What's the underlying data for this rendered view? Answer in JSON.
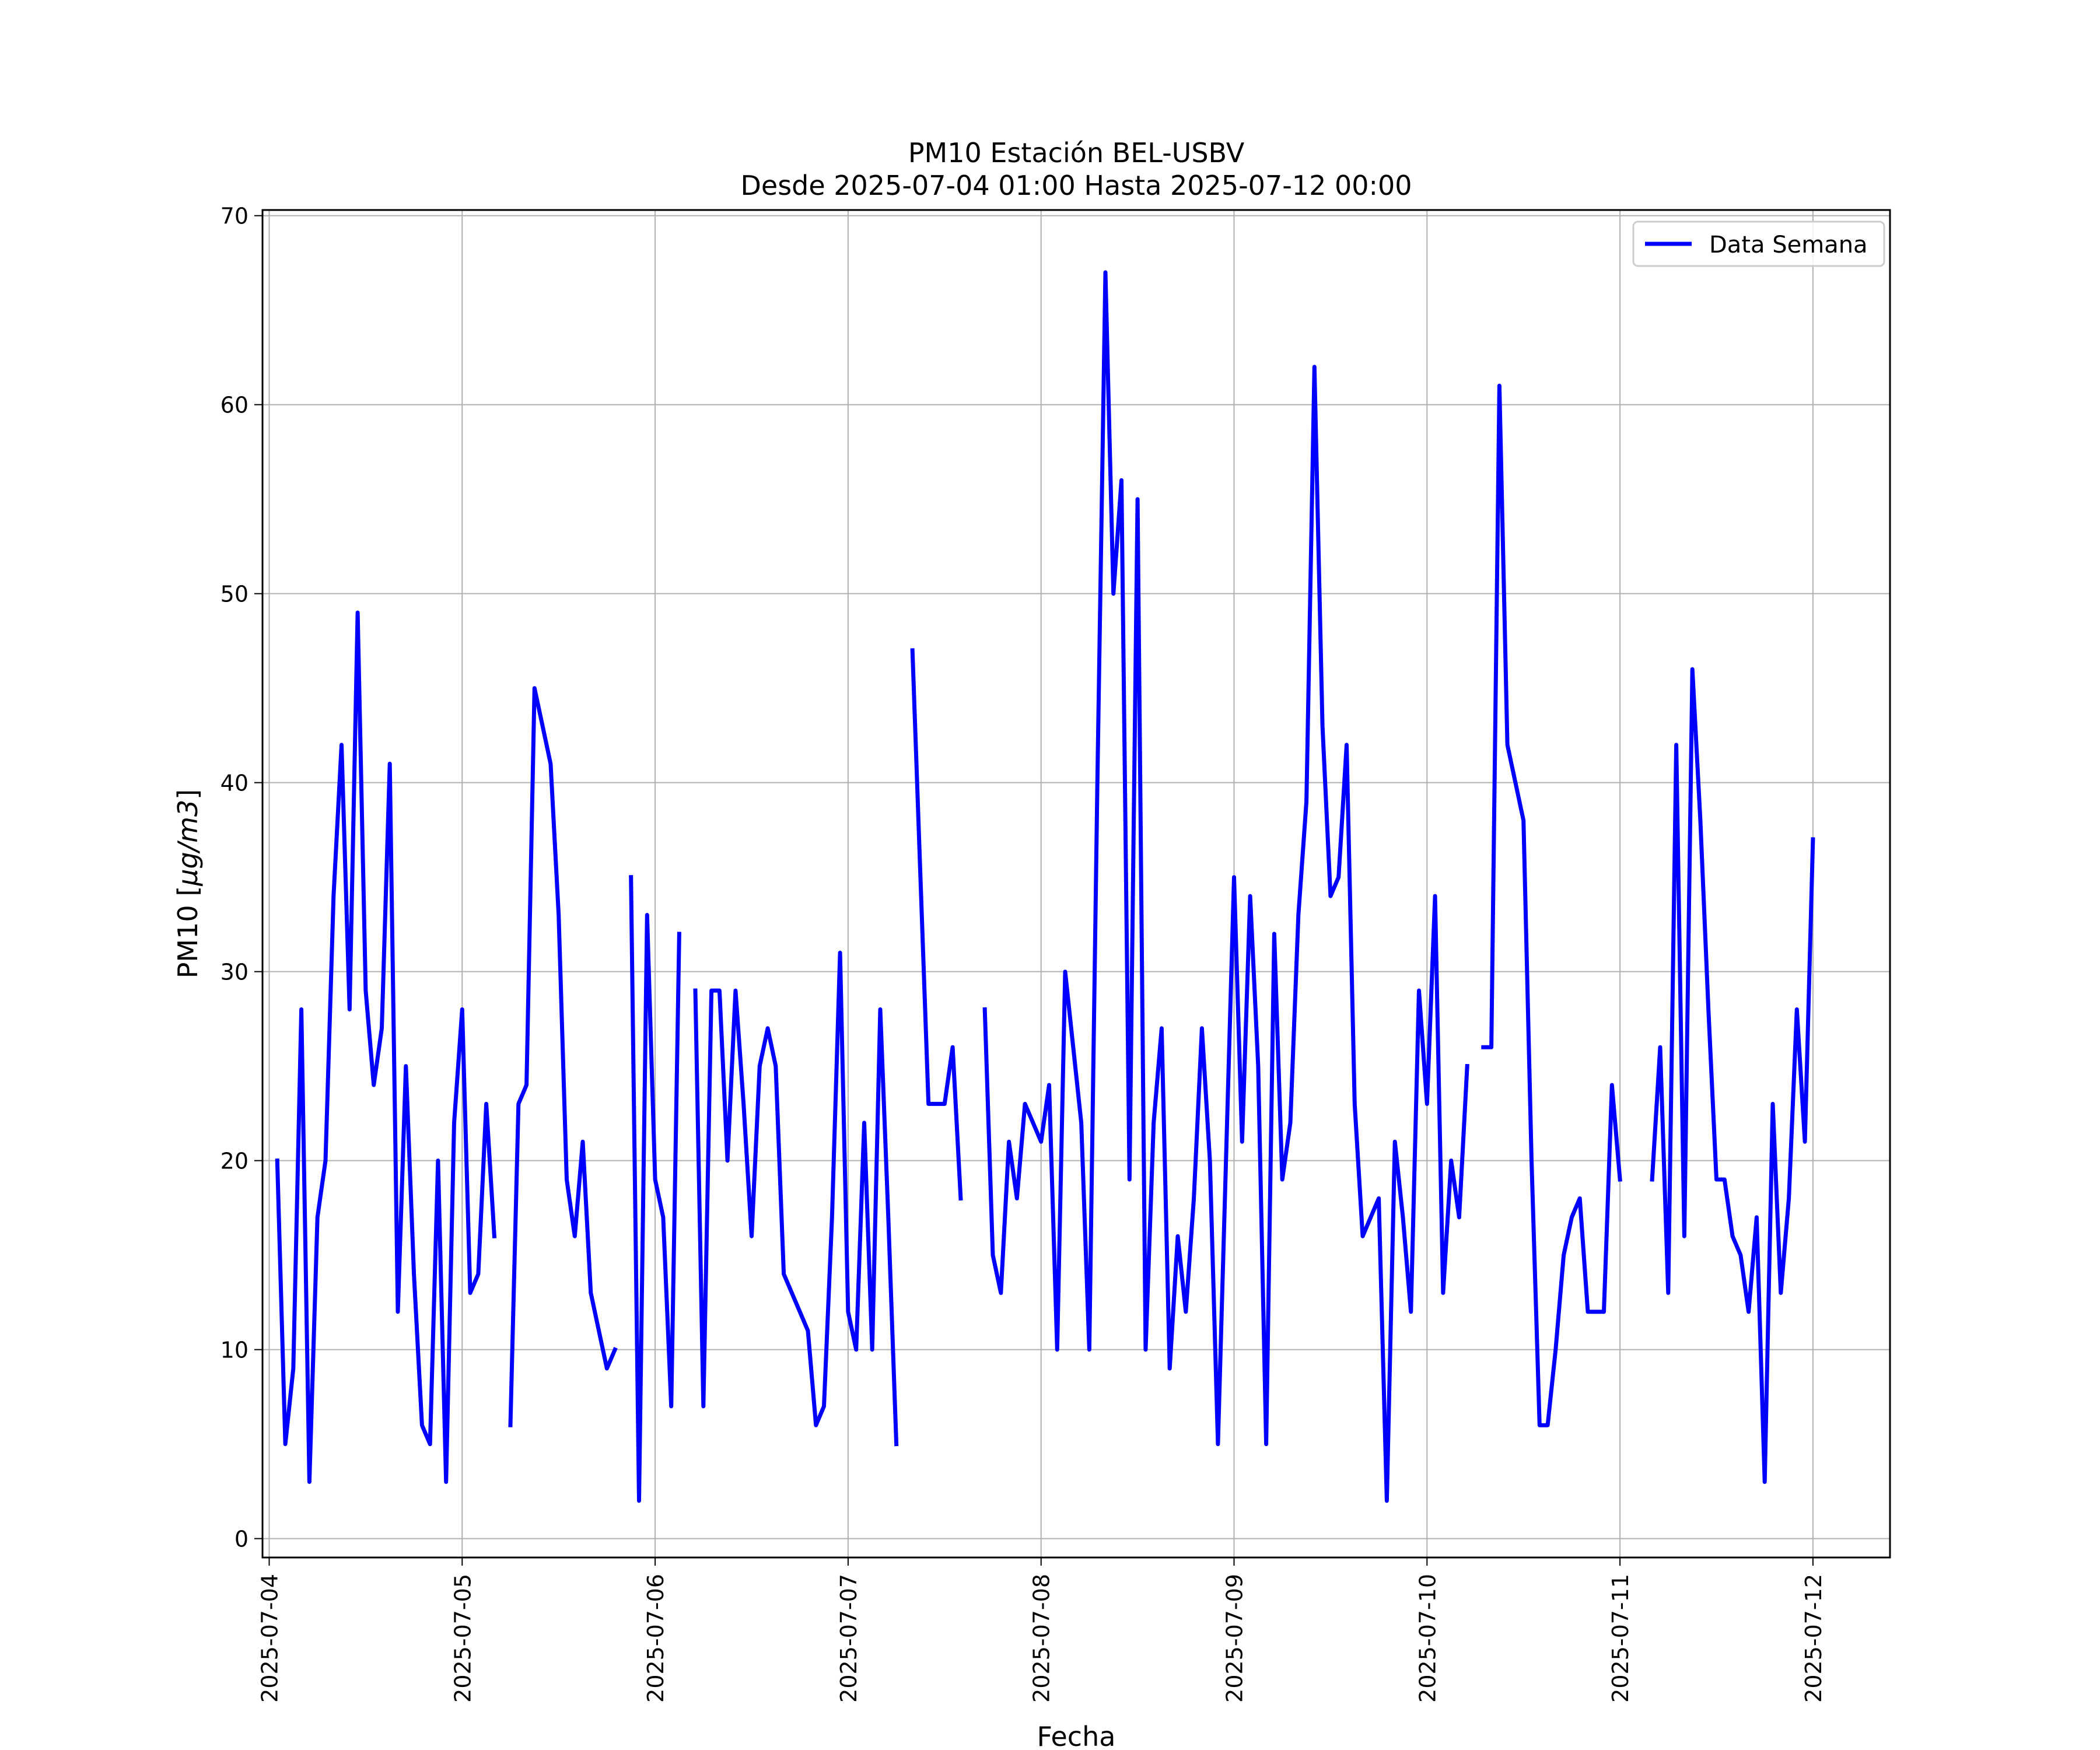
{
  "chart_data": {
    "type": "line",
    "title": "PM10 Estación BEL-USBV",
    "subtitle": "Desde 2025-07-04 01:00 Hasta 2025-07-12 00:00",
    "xlabel": "Fecha",
    "ylabel_main": "PM10 [",
    "ylabel_unit": "μg/m3",
    "ylabel_close": "]",
    "xlim": [
      "2025-07-03T23:10",
      "2025-07-12T09:35"
    ],
    "ylim": [
      -1,
      70.3
    ],
    "y_ticks": [
      0,
      10,
      20,
      30,
      40,
      50,
      60,
      70
    ],
    "x_ticks": [
      "2025-07-04",
      "2025-07-05",
      "2025-07-06",
      "2025-07-07",
      "2025-07-08",
      "2025-07-09",
      "2025-07-10",
      "2025-07-11",
      "2025-07-12"
    ],
    "grid": true,
    "legend_position": "top-right",
    "series": [
      {
        "name": "Data Semana",
        "color": "#0000ff",
        "segments": [
          [
            {
              "x": "2025-07-04T01:00",
              "y": 20
            },
            {
              "x": "2025-07-04T02:00",
              "y": 5
            },
            {
              "x": "2025-07-04T03:00",
              "y": 9
            },
            {
              "x": "2025-07-04T04:00",
              "y": 28
            },
            {
              "x": "2025-07-04T05:00",
              "y": 3
            },
            {
              "x": "2025-07-04T06:00",
              "y": 17
            },
            {
              "x": "2025-07-04T07:00",
              "y": 20
            },
            {
              "x": "2025-07-04T08:00",
              "y": 34
            },
            {
              "x": "2025-07-04T09:00",
              "y": 42
            },
            {
              "x": "2025-07-04T10:00",
              "y": 28
            },
            {
              "x": "2025-07-04T11:00",
              "y": 49
            },
            {
              "x": "2025-07-04T12:00",
              "y": 29
            },
            {
              "x": "2025-07-04T13:00",
              "y": 24
            },
            {
              "x": "2025-07-04T14:00",
              "y": 27
            },
            {
              "x": "2025-07-04T15:00",
              "y": 41
            },
            {
              "x": "2025-07-04T16:00",
              "y": 12
            },
            {
              "x": "2025-07-04T17:00",
              "y": 25
            },
            {
              "x": "2025-07-04T18:00",
              "y": 14
            },
            {
              "x": "2025-07-04T19:00",
              "y": 6
            },
            {
              "x": "2025-07-04T20:00",
              "y": 5
            },
            {
              "x": "2025-07-04T21:00",
              "y": 20
            },
            {
              "x": "2025-07-04T22:00",
              "y": 3
            },
            {
              "x": "2025-07-04T23:00",
              "y": 22
            },
            {
              "x": "2025-07-05T00:00",
              "y": 28
            },
            {
              "x": "2025-07-05T01:00",
              "y": 13
            },
            {
              "x": "2025-07-05T02:00",
              "y": 14
            },
            {
              "x": "2025-07-05T03:00",
              "y": 23
            },
            {
              "x": "2025-07-05T04:00",
              "y": 16
            }
          ],
          [
            {
              "x": "2025-07-05T06:00",
              "y": 6
            },
            {
              "x": "2025-07-05T07:00",
              "y": 23
            },
            {
              "x": "2025-07-05T08:00",
              "y": 24
            },
            {
              "x": "2025-07-05T09:00",
              "y": 45
            },
            {
              "x": "2025-07-05T10:00",
              "y": 43
            },
            {
              "x": "2025-07-05T11:00",
              "y": 41
            },
            {
              "x": "2025-07-05T12:00",
              "y": 33
            },
            {
              "x": "2025-07-05T13:00",
              "y": 19
            },
            {
              "x": "2025-07-05T14:00",
              "y": 16
            },
            {
              "x": "2025-07-05T15:00",
              "y": 21
            },
            {
              "x": "2025-07-05T16:00",
              "y": 13
            },
            {
              "x": "2025-07-05T17:00",
              "y": 11
            },
            {
              "x": "2025-07-05T18:00",
              "y": 9
            },
            {
              "x": "2025-07-05T19:00",
              "y": 10
            }
          ],
          [
            {
              "x": "2025-07-05T21:00",
              "y": 35
            },
            {
              "x": "2025-07-05T22:00",
              "y": 2
            },
            {
              "x": "2025-07-05T23:00",
              "y": 33
            },
            {
              "x": "2025-07-06T00:00",
              "y": 19
            },
            {
              "x": "2025-07-06T01:00",
              "y": 17
            },
            {
              "x": "2025-07-06T02:00",
              "y": 7
            },
            {
              "x": "2025-07-06T03:00",
              "y": 32
            }
          ],
          [
            {
              "x": "2025-07-06T05:00",
              "y": 29
            },
            {
              "x": "2025-07-06T06:00",
              "y": 7
            },
            {
              "x": "2025-07-06T07:00",
              "y": 29
            },
            {
              "x": "2025-07-06T08:00",
              "y": 29
            },
            {
              "x": "2025-07-06T09:00",
              "y": 20
            },
            {
              "x": "2025-07-06T10:00",
              "y": 29
            },
            {
              "x": "2025-07-06T11:00",
              "y": 23
            },
            {
              "x": "2025-07-06T12:00",
              "y": 16
            },
            {
              "x": "2025-07-06T13:00",
              "y": 25
            },
            {
              "x": "2025-07-06T14:00",
              "y": 27
            },
            {
              "x": "2025-07-06T15:00",
              "y": 25
            },
            {
              "x": "2025-07-06T16:00",
              "y": 14
            },
            {
              "x": "2025-07-06T17:00",
              "y": 13
            },
            {
              "x": "2025-07-06T18:00",
              "y": 12
            },
            {
              "x": "2025-07-06T19:00",
              "y": 11
            },
            {
              "x": "2025-07-06T20:00",
              "y": 6
            },
            {
              "x": "2025-07-06T21:00",
              "y": 7
            },
            {
              "x": "2025-07-06T22:00",
              "y": 17
            },
            {
              "x": "2025-07-06T23:00",
              "y": 31
            },
            {
              "x": "2025-07-07T00:00",
              "y": 12
            },
            {
              "x": "2025-07-07T01:00",
              "y": 10
            },
            {
              "x": "2025-07-07T02:00",
              "y": 22
            },
            {
              "x": "2025-07-07T03:00",
              "y": 10
            },
            {
              "x": "2025-07-07T04:00",
              "y": 28
            },
            {
              "x": "2025-07-07T05:00",
              "y": 17
            },
            {
              "x": "2025-07-07T06:00",
              "y": 5
            }
          ],
          [
            {
              "x": "2025-07-07T08:00",
              "y": 47
            },
            {
              "x": "2025-07-07T09:00",
              "y": 35
            },
            {
              "x": "2025-07-07T10:00",
              "y": 23
            },
            {
              "x": "2025-07-07T11:00",
              "y": 23
            },
            {
              "x": "2025-07-07T12:00",
              "y": 23
            },
            {
              "x": "2025-07-07T13:00",
              "y": 26
            },
            {
              "x": "2025-07-07T14:00",
              "y": 18
            }
          ],
          [
            {
              "x": "2025-07-07T17:00",
              "y": 28
            },
            {
              "x": "2025-07-07T18:00",
              "y": 15
            },
            {
              "x": "2025-07-07T19:00",
              "y": 13
            },
            {
              "x": "2025-07-07T20:00",
              "y": 21
            },
            {
              "x": "2025-07-07T21:00",
              "y": 18
            },
            {
              "x": "2025-07-07T22:00",
              "y": 23
            },
            {
              "x": "2025-07-07T23:00",
              "y": 22
            },
            {
              "x": "2025-07-08T00:00",
              "y": 21
            },
            {
              "x": "2025-07-08T01:00",
              "y": 24
            },
            {
              "x": "2025-07-08T02:00",
              "y": 10
            },
            {
              "x": "2025-07-08T03:00",
              "y": 30
            },
            {
              "x": "2025-07-08T04:00",
              "y": 26
            },
            {
              "x": "2025-07-08T05:00",
              "y": 22
            },
            {
              "x": "2025-07-08T06:00",
              "y": 10
            },
            {
              "x": "2025-07-08T07:00",
              "y": 40
            },
            {
              "x": "2025-07-08T08:00",
              "y": 67
            },
            {
              "x": "2025-07-08T09:00",
              "y": 50
            },
            {
              "x": "2025-07-08T10:00",
              "y": 56
            },
            {
              "x": "2025-07-08T11:00",
              "y": 19
            },
            {
              "x": "2025-07-08T12:00",
              "y": 55
            },
            {
              "x": "2025-07-08T13:00",
              "y": 10
            },
            {
              "x": "2025-07-08T14:00",
              "y": 22
            },
            {
              "x": "2025-07-08T15:00",
              "y": 27
            },
            {
              "x": "2025-07-08T16:00",
              "y": 9
            },
            {
              "x": "2025-07-08T17:00",
              "y": 16
            },
            {
              "x": "2025-07-08T18:00",
              "y": 12
            },
            {
              "x": "2025-07-08T19:00",
              "y": 18
            },
            {
              "x": "2025-07-08T20:00",
              "y": 27
            },
            {
              "x": "2025-07-08T21:00",
              "y": 20
            },
            {
              "x": "2025-07-08T22:00",
              "y": 5
            },
            {
              "x": "2025-07-08T23:00",
              "y": 20
            },
            {
              "x": "2025-07-09T00:00",
              "y": 35
            },
            {
              "x": "2025-07-09T01:00",
              "y": 21
            },
            {
              "x": "2025-07-09T02:00",
              "y": 34
            },
            {
              "x": "2025-07-09T03:00",
              "y": 25
            },
            {
              "x": "2025-07-09T04:00",
              "y": 5
            },
            {
              "x": "2025-07-09T05:00",
              "y": 32
            },
            {
              "x": "2025-07-09T06:00",
              "y": 19
            },
            {
              "x": "2025-07-09T07:00",
              "y": 22
            },
            {
              "x": "2025-07-09T08:00",
              "y": 33
            },
            {
              "x": "2025-07-09T09:00",
              "y": 39
            },
            {
              "x": "2025-07-09T10:00",
              "y": 62
            },
            {
              "x": "2025-07-09T11:00",
              "y": 43
            },
            {
              "x": "2025-07-09T12:00",
              "y": 34
            },
            {
              "x": "2025-07-09T13:00",
              "y": 35
            },
            {
              "x": "2025-07-09T14:00",
              "y": 42
            },
            {
              "x": "2025-07-09T15:00",
              "y": 23
            },
            {
              "x": "2025-07-09T16:00",
              "y": 16
            },
            {
              "x": "2025-07-09T17:00",
              "y": 17
            },
            {
              "x": "2025-07-09T18:00",
              "y": 18
            },
            {
              "x": "2025-07-09T19:00",
              "y": 2
            },
            {
              "x": "2025-07-09T20:00",
              "y": 21
            },
            {
              "x": "2025-07-09T21:00",
              "y": 17
            },
            {
              "x": "2025-07-09T22:00",
              "y": 12
            },
            {
              "x": "2025-07-09T23:00",
              "y": 29
            },
            {
              "x": "2025-07-10T00:00",
              "y": 23
            },
            {
              "x": "2025-07-10T01:00",
              "y": 34
            },
            {
              "x": "2025-07-10T02:00",
              "y": 13
            },
            {
              "x": "2025-07-10T03:00",
              "y": 20
            },
            {
              "x": "2025-07-10T04:00",
              "y": 17
            },
            {
              "x": "2025-07-10T05:00",
              "y": 25
            }
          ],
          [
            {
              "x": "2025-07-10T07:00",
              "y": 26
            },
            {
              "x": "2025-07-10T08:00",
              "y": 26
            },
            {
              "x": "2025-07-10T09:00",
              "y": 61
            },
            {
              "x": "2025-07-10T10:00",
              "y": 42
            },
            {
              "x": "2025-07-10T11:00",
              "y": 40
            },
            {
              "x": "2025-07-10T12:00",
              "y": 38
            },
            {
              "x": "2025-07-10T13:00",
              "y": 20
            },
            {
              "x": "2025-07-10T14:00",
              "y": 6
            },
            {
              "x": "2025-07-10T15:00",
              "y": 6
            },
            {
              "x": "2025-07-10T16:00",
              "y": 10
            },
            {
              "x": "2025-07-10T17:00",
              "y": 15
            },
            {
              "x": "2025-07-10T18:00",
              "y": 17
            },
            {
              "x": "2025-07-10T19:00",
              "y": 18
            },
            {
              "x": "2025-07-10T20:00",
              "y": 12
            },
            {
              "x": "2025-07-10T21:00",
              "y": 12
            },
            {
              "x": "2025-07-10T22:00",
              "y": 12
            },
            {
              "x": "2025-07-10T23:00",
              "y": 24
            },
            {
              "x": "2025-07-11T00:00",
              "y": 19
            }
          ],
          [
            {
              "x": "2025-07-11T04:00",
              "y": 19
            },
            {
              "x": "2025-07-11T05:00",
              "y": 26
            },
            {
              "x": "2025-07-11T06:00",
              "y": 13
            },
            {
              "x": "2025-07-11T07:00",
              "y": 42
            },
            {
              "x": "2025-07-11T08:00",
              "y": 16
            },
            {
              "x": "2025-07-11T09:00",
              "y": 46
            },
            {
              "x": "2025-07-11T10:00",
              "y": 38
            },
            {
              "x": "2025-07-11T11:00",
              "y": 28
            },
            {
              "x": "2025-07-11T12:00",
              "y": 19
            },
            {
              "x": "2025-07-11T13:00",
              "y": 19
            },
            {
              "x": "2025-07-11T14:00",
              "y": 16
            },
            {
              "x": "2025-07-11T15:00",
              "y": 15
            },
            {
              "x": "2025-07-11T16:00",
              "y": 12
            },
            {
              "x": "2025-07-11T17:00",
              "y": 17
            },
            {
              "x": "2025-07-11T18:00",
              "y": 3
            },
            {
              "x": "2025-07-11T19:00",
              "y": 23
            },
            {
              "x": "2025-07-11T20:00",
              "y": 13
            },
            {
              "x": "2025-07-11T21:00",
              "y": 18
            },
            {
              "x": "2025-07-11T22:00",
              "y": 28
            },
            {
              "x": "2025-07-11T23:00",
              "y": 21
            },
            {
              "x": "2025-07-12T00:00",
              "y": 37
            }
          ]
        ]
      }
    ]
  }
}
